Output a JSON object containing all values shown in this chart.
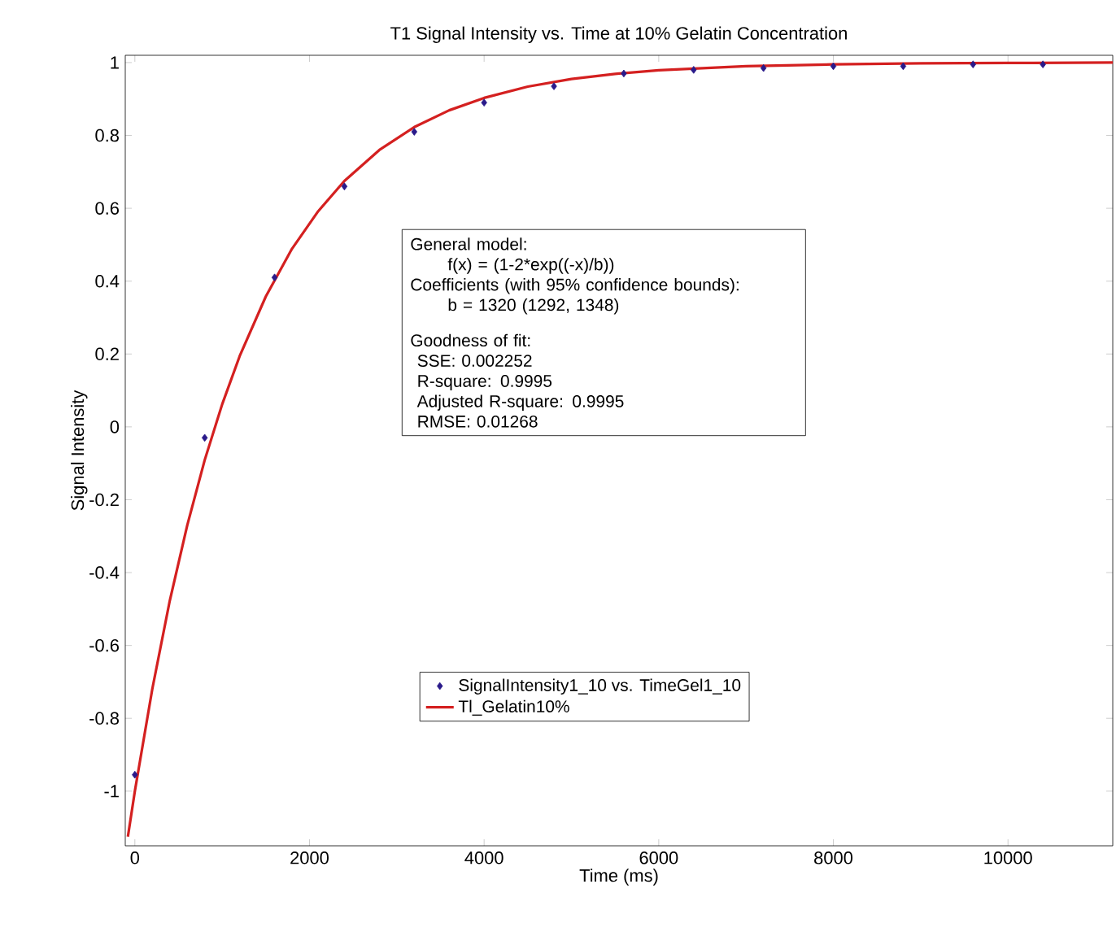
{
  "chart_data": {
    "type": "scatter",
    "title": "T1 Signal Intensity vs. Time at 10% Gelatin Concentration",
    "xlabel": "Time (ms)",
    "ylabel": "Signal Intensity",
    "xlim": [
      -110,
      11200
    ],
    "ylim": [
      -1.15,
      1.02
    ],
    "xticks": [
      0,
      2000,
      4000,
      6000,
      8000,
      10000
    ],
    "yticks": [
      -1,
      -0.8,
      -0.6,
      -0.4,
      -0.2,
      0,
      0.2,
      0.4,
      0.6,
      0.8,
      1
    ],
    "grid": false,
    "legend": "bottom right",
    "annotations": [
      "General model:",
      "f(x) = (1-2*exp((-x)/b))",
      "Coefficients (with 95% confidence bounds):",
      "b = 1320 (1292, 1348)",
      "Goodness of fit:",
      "SSE: 0.002252",
      "R-square: 0.9995",
      "Adjusted R-square: 0.9995",
      "RMSE: 0.01268"
    ],
    "series": [
      {
        "name": "SignalIntensity1_10 vs. TimeGel1_10",
        "marker": "diamond",
        "color": "#2a1a8a",
        "x": [
          0,
          800,
          1600,
          2400,
          3200,
          4000,
          4800,
          5600,
          6400,
          7200,
          8000,
          8800,
          9600,
          10400
        ],
        "values": [
          -0.955,
          -0.03,
          0.41,
          0.66,
          0.81,
          0.89,
          0.935,
          0.97,
          0.98,
          0.985,
          0.99,
          0.99,
          0.995,
          0.995
        ]
      },
      {
        "name": "Tl_Gelatin10%",
        "type": "line",
        "marker": "none",
        "line_style": "solid",
        "color": "#d42020",
        "x": [
          -80,
          0,
          200,
          400,
          600,
          800,
          1000,
          1200,
          1500,
          1800,
          2100,
          2400,
          2800,
          3200,
          3600,
          4000,
          4500,
          5000,
          5500,
          6000,
          7000,
          8000,
          9000,
          10000,
          11200
        ],
        "values": [
          -1.125,
          -1,
          -0.719,
          -0.477,
          -0.27,
          -0.091,
          0.062,
          0.194,
          0.358,
          0.489,
          0.592,
          0.675,
          0.76,
          0.823,
          0.869,
          0.903,
          0.934,
          0.955,
          0.969,
          0.979,
          0.99,
          0.995,
          0.998,
          0.999,
          1.0
        ]
      }
    ]
  }
}
